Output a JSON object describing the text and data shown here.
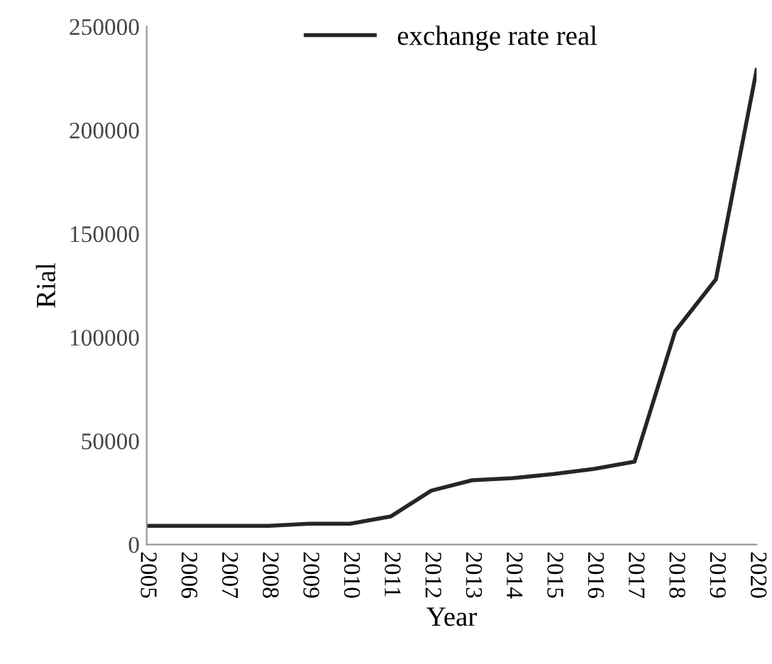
{
  "chart_data": {
    "type": "line",
    "xlabel": "Year",
    "ylabel": "Rial",
    "categories": [
      "2005",
      "2006",
      "2007",
      "2008",
      "2009",
      "2010",
      "2011",
      "2012",
      "2013",
      "2014",
      "2015",
      "2016",
      "2017",
      "2018",
      "2019",
      "2020"
    ],
    "series": [
      {
        "name": "exchange rate real",
        "color": "#262626",
        "values": [
          9000,
          9000,
          9000,
          9000,
          10000,
          10000,
          13500,
          26000,
          31000,
          32000,
          34000,
          36500,
          40000,
          103000,
          128000,
          229000
        ]
      }
    ],
    "ylim": [
      0,
      250000
    ],
    "yticks": [
      0,
      50000,
      100000,
      150000,
      200000,
      250000
    ],
    "grid": false,
    "legend": "top"
  }
}
